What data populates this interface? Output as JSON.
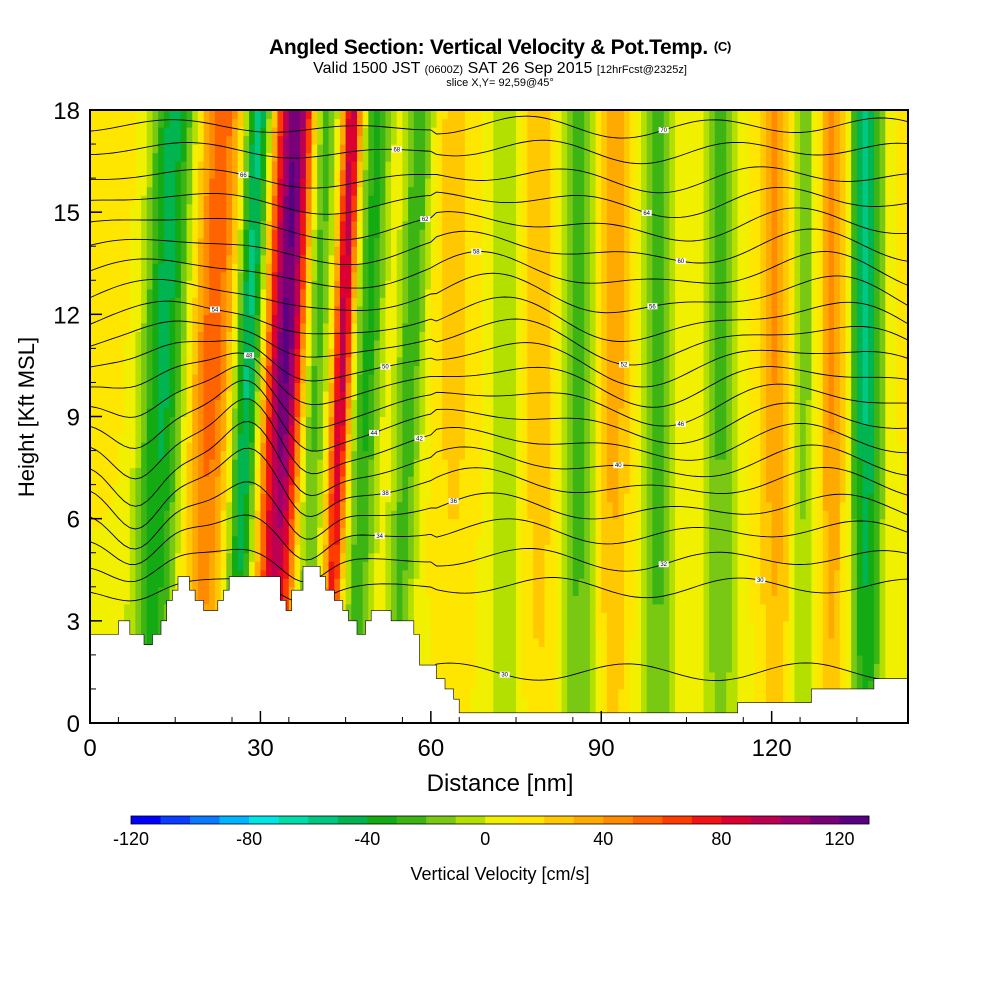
{
  "header": {
    "title": "Angled Section: Vertical Velocity & Pot.Temp.",
    "title_unit": "(C)",
    "valid_prefix": "Valid 1500 JST",
    "valid_utc": "(0600Z)",
    "valid_date": "SAT 26 Sep 2015",
    "forecast": "[12hrFcst@2325z]",
    "slice": "slice X,Y= 92,59@45°"
  },
  "colorbar": {
    "label": "Vertical Velocity [cm/s]",
    "min": -120,
    "max": 130,
    "tick_labels": [
      "-120",
      "-80",
      "-40",
      "0",
      "40",
      "80",
      "120"
    ],
    "tick_values": [
      -120,
      -80,
      -40,
      0,
      40,
      80,
      120
    ],
    "colors": [
      "#0000ff",
      "#0a3dff",
      "#0a78ff",
      "#00b4ff",
      "#00e6e6",
      "#00dcaa",
      "#00c882",
      "#00b450",
      "#14aa14",
      "#3cb414",
      "#78c814",
      "#b4e000",
      "#f0f000",
      "#ffe600",
      "#ffc800",
      "#ffaa00",
      "#ff8c00",
      "#ff6400",
      "#ff3c00",
      "#f01414",
      "#dc0032",
      "#be0050",
      "#a0006e",
      "#780078",
      "#5a0082"
    ]
  },
  "chart_data": {
    "type": "heatmap",
    "title": "Angled Section: Vertical Velocity & Pot.Temp.",
    "xlabel": "Distance [nm]",
    "ylabel": "Height [Kft MSL]",
    "xlim": [
      0,
      144
    ],
    "ylim": [
      0,
      18
    ],
    "x_ticks": [
      0,
      30,
      60,
      90,
      120
    ],
    "x_tick_labels": [
      "0",
      "30",
      "60",
      "90",
      "120"
    ],
    "y_ticks": [
      0,
      3,
      6,
      9,
      12,
      15,
      18
    ],
    "y_tick_labels": [
      "0",
      "3",
      "6",
      "9",
      "12",
      "15",
      "18"
    ],
    "field": "Vertical Velocity",
    "units": "cm/s",
    "contour_field": "Pot.Temp.",
    "velocity_bands": [
      {
        "x": 11,
        "w": 3,
        "v": -30
      },
      {
        "x": 14,
        "w": 3.5,
        "v": -40
      },
      {
        "x": 21,
        "w": 4,
        "v": 45
      },
      {
        "x": 27.5,
        "w": 2.5,
        "v": -70
      },
      {
        "x": 34,
        "w": 3.5,
        "v": 110
      },
      {
        "x": 39,
        "w": 2.5,
        "v": -45
      },
      {
        "x": 44,
        "w": 1.6,
        "v": 85
      },
      {
        "x": 48.5,
        "w": 2.5,
        "v": -45
      },
      {
        "x": 56,
        "w": 2.5,
        "v": -40
      },
      {
        "x": 64,
        "w": 3.5,
        "v": 12
      },
      {
        "x": 73,
        "w": 3,
        "v": -20
      },
      {
        "x": 79,
        "w": 3,
        "v": 18
      },
      {
        "x": 86,
        "w": 3,
        "v": -40
      },
      {
        "x": 92,
        "w": 3,
        "v": 25
      },
      {
        "x": 100,
        "w": 3,
        "v": -40
      },
      {
        "x": 111,
        "w": 3,
        "v": -35
      },
      {
        "x": 121,
        "w": 3,
        "v": 30
      },
      {
        "x": 126,
        "w": 3,
        "v": -30
      },
      {
        "x": 130.5,
        "w": 3,
        "v": 35
      },
      {
        "x": 136.5,
        "w": 3,
        "v": -65
      }
    ],
    "terrain": [
      [
        0,
        2.6
      ],
      [
        5,
        2.6
      ],
      [
        5,
        3.0
      ],
      [
        7,
        3.0
      ],
      [
        7,
        2.6
      ],
      [
        9.5,
        2.6
      ],
      [
        9.5,
        2.3
      ],
      [
        11,
        2.3
      ],
      [
        11,
        2.6
      ],
      [
        12.5,
        2.6
      ],
      [
        12.5,
        3.0
      ],
      [
        13.5,
        3.0
      ],
      [
        13.5,
        3.6
      ],
      [
        14.5,
        3.6
      ],
      [
        14.5,
        3.9
      ],
      [
        15.5,
        3.9
      ],
      [
        15.5,
        4.3
      ],
      [
        17.5,
        4.3
      ],
      [
        17.5,
        3.9
      ],
      [
        18.5,
        3.9
      ],
      [
        18.5,
        3.6
      ],
      [
        20,
        3.6
      ],
      [
        20,
        3.3
      ],
      [
        22.5,
        3.3
      ],
      [
        22.5,
        3.6
      ],
      [
        23.5,
        3.6
      ],
      [
        23.5,
        3.9
      ],
      [
        24.5,
        3.9
      ],
      [
        24.5,
        4.3
      ],
      [
        33.5,
        4.3
      ],
      [
        33.5,
        3.6
      ],
      [
        34.5,
        3.6
      ],
      [
        34.5,
        3.3
      ],
      [
        35.5,
        3.3
      ],
      [
        35.5,
        3.9
      ],
      [
        37.5,
        3.9
      ],
      [
        37.5,
        4.6
      ],
      [
        40.5,
        4.6
      ],
      [
        40.5,
        4.3
      ],
      [
        41.5,
        4.3
      ],
      [
        41.5,
        3.9
      ],
      [
        43,
        3.9
      ],
      [
        43,
        3.6
      ],
      [
        44.5,
        3.6
      ],
      [
        44.5,
        3.3
      ],
      [
        45.5,
        3.3
      ],
      [
        45.5,
        3.0
      ],
      [
        47,
        3.0
      ],
      [
        47,
        2.6
      ],
      [
        48.5,
        2.6
      ],
      [
        48.5,
        3.0
      ],
      [
        49.5,
        3.0
      ],
      [
        49.5,
        3.3
      ],
      [
        53,
        3.3
      ],
      [
        53,
        3.0
      ],
      [
        57,
        3.0
      ],
      [
        57,
        2.6
      ],
      [
        58,
        2.6
      ],
      [
        58,
        1.7
      ],
      [
        61,
        1.7
      ],
      [
        61,
        1.3
      ],
      [
        62.5,
        1.3
      ],
      [
        62.5,
        1.0
      ],
      [
        64,
        1.0
      ],
      [
        64,
        0.7
      ],
      [
        65,
        0.7
      ],
      [
        65,
        0.3
      ],
      [
        114,
        0.3
      ],
      [
        114,
        0.6
      ],
      [
        127,
        0.6
      ],
      [
        127,
        1.0
      ],
      [
        138,
        1.0
      ],
      [
        138,
        1.3
      ],
      [
        144,
        1.3
      ]
    ],
    "theta_contours": [
      {
        "label": "30",
        "base": 1.5,
        "label_x": 73
      },
      {
        "label": "30",
        "base": 4.0,
        "label_x": 118
      },
      {
        "label": "32",
        "base": 4.8,
        "label_x": 101
      },
      {
        "label": "34",
        "base": 5.6,
        "label_x": 51
      },
      {
        "label": "36",
        "base": 6.3,
        "label_x": 64
      },
      {
        "label": "38",
        "base": 7.0,
        "label_x": 52
      },
      {
        "label": "40",
        "base": 7.6,
        "label_x": 93
      },
      {
        "label": "42",
        "base": 8.2,
        "label_x": 58
      },
      {
        "label": "44",
        "base": 8.8,
        "label_x": 50
      },
      {
        "label": "46",
        "base": 9.4,
        "label_x": 104
      },
      {
        "label": "48",
        "base": 10.0,
        "label_x": 28
      },
      {
        "label": "50",
        "base": 10.6,
        "label_x": 52
      },
      {
        "label": "52",
        "base": 11.2,
        "label_x": 94
      },
      {
        "label": "54",
        "base": 11.8,
        "label_x": 22
      },
      {
        "label": "56",
        "base": 12.5,
        "label_x": 99
      },
      {
        "label": "58",
        "base": 13.2,
        "label_x": 68
      },
      {
        "label": "60",
        "base": 13.9,
        "label_x": 104
      },
      {
        "label": "62",
        "base": 14.6,
        "label_x": 59
      },
      {
        "label": "64",
        "base": 15.3,
        "label_x": 98
      },
      {
        "label": "66",
        "base": 16.0,
        "label_x": 27
      },
      {
        "label": "68",
        "base": 16.8,
        "label_x": 54
      },
      {
        "label": "70",
        "base": 17.5,
        "label_x": 101
      }
    ]
  }
}
